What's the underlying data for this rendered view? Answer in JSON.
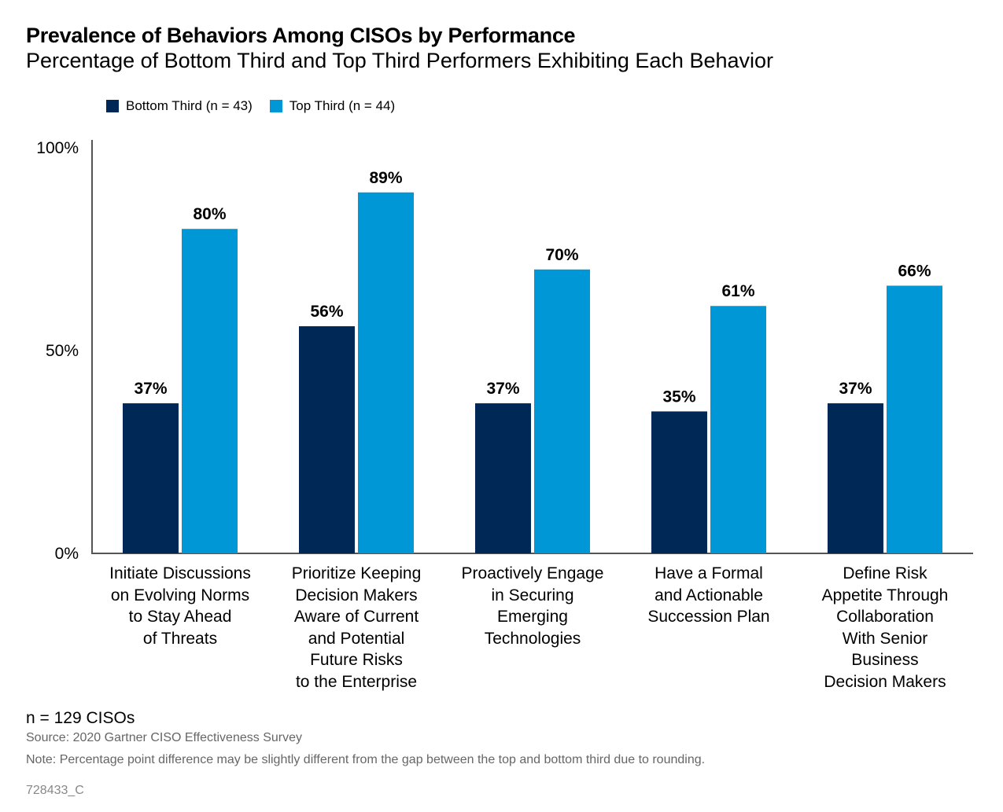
{
  "colors": {
    "bottom": "#002856",
    "top": "#0097d6",
    "axis": "#555555"
  },
  "chart_data": {
    "type": "bar",
    "title": "Prevalence of Behaviors Among CISOs by Performance",
    "subtitle": "Percentage of Bottom Third and Top Third Performers Exhibiting Each Behavior",
    "categories": [
      "Initiate Discussions\non Evolving Norms\nto Stay Ahead\nof Threats",
      "Prioritize Keeping\nDecision Makers\nAware of Current\nand Potential\nFuture Risks\nto the Enterprise",
      "Proactively Engage\nin Securing\nEmerging\nTechnologies",
      "Have a Formal\nand Actionable\nSuccession Plan",
      "Define Risk\nAppetite Through\nCollaboration\nWith Senior\nBusiness\nDecision Makers"
    ],
    "series": [
      {
        "name": "Bottom Third (n = 43)",
        "values": [
          37,
          56,
          37,
          35,
          37
        ],
        "labels": [
          "37%",
          "56%",
          "37%",
          "35%",
          "37%"
        ]
      },
      {
        "name": "Top Third (n = 44)",
        "values": [
          80,
          89,
          70,
          61,
          66
        ],
        "labels": [
          "80%",
          "89%",
          "70%",
          "61%",
          "66%"
        ]
      }
    ],
    "ylim": [
      0,
      100
    ],
    "yticks": [
      "0%",
      "50%",
      "100%"
    ],
    "grid": false,
    "legend": "top-left"
  },
  "footer": {
    "n": "n = 129 CISOs",
    "source": "Source: 2020 Gartner CISO Effectiveness Survey",
    "note": "Note: Percentage point difference may be slightly different from the gap between the top and bottom third due to rounding.",
    "id": "728433_C"
  }
}
